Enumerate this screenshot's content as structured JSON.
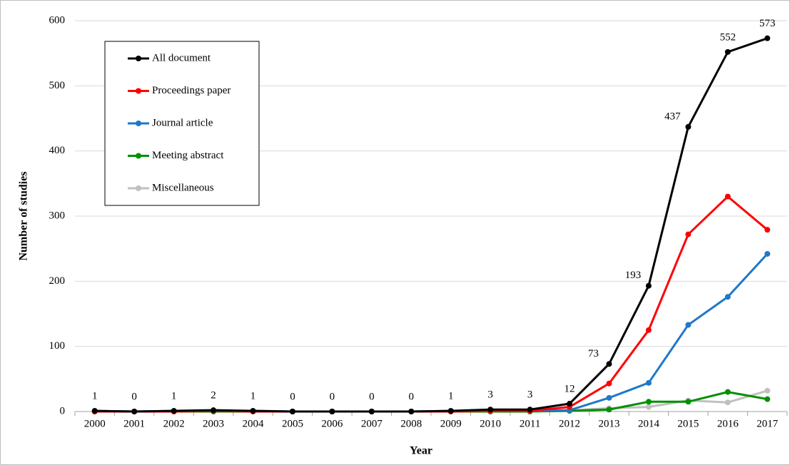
{
  "chart_data": {
    "type": "line",
    "x_label": "Year",
    "y_label": "Number of studies",
    "categories": [
      "2000",
      "2001",
      "2002",
      "2003",
      "2004",
      "2005",
      "2006",
      "2007",
      "2008",
      "2009",
      "2010",
      "2011",
      "2012",
      "2013",
      "2014",
      "2015",
      "2016",
      "2017"
    ],
    "ylim": [
      0,
      600
    ],
    "yticks": [
      0,
      100,
      200,
      300,
      400,
      500,
      600
    ],
    "grid": true,
    "legend": "upper left",
    "series": [
      {
        "name": "All document",
        "color": "#000000",
        "values": [
          1,
          0,
          1,
          2,
          1,
          0,
          0,
          0,
          0,
          1,
          3,
          3,
          12,
          73,
          193,
          437,
          552,
          573
        ]
      },
      {
        "name": "Proceedings paper",
        "color": "#ff0000",
        "values": [
          0,
          0,
          0,
          1,
          0,
          0,
          0,
          0,
          0,
          0,
          1,
          1,
          7,
          43,
          125,
          272,
          330,
          279
        ]
      },
      {
        "name": "Journal article",
        "color": "#1f78c8",
        "values": [
          1,
          0,
          1,
          1,
          1,
          0,
          0,
          0,
          0,
          1,
          1,
          1,
          2,
          21,
          44,
          133,
          176,
          242
        ]
      },
      {
        "name": "Meeting abstract",
        "color": "#009000",
        "values": [
          0,
          0,
          0,
          0,
          0,
          0,
          0,
          0,
          0,
          0,
          0,
          0,
          1,
          3,
          15,
          15,
          30,
          19
        ]
      },
      {
        "name": "Miscellaneous",
        "color": "#c0c0c0",
        "values": [
          0,
          0,
          0,
          0,
          0,
          0,
          0,
          0,
          0,
          0,
          1,
          1,
          2,
          5,
          7,
          17,
          14,
          32
        ]
      }
    ]
  }
}
